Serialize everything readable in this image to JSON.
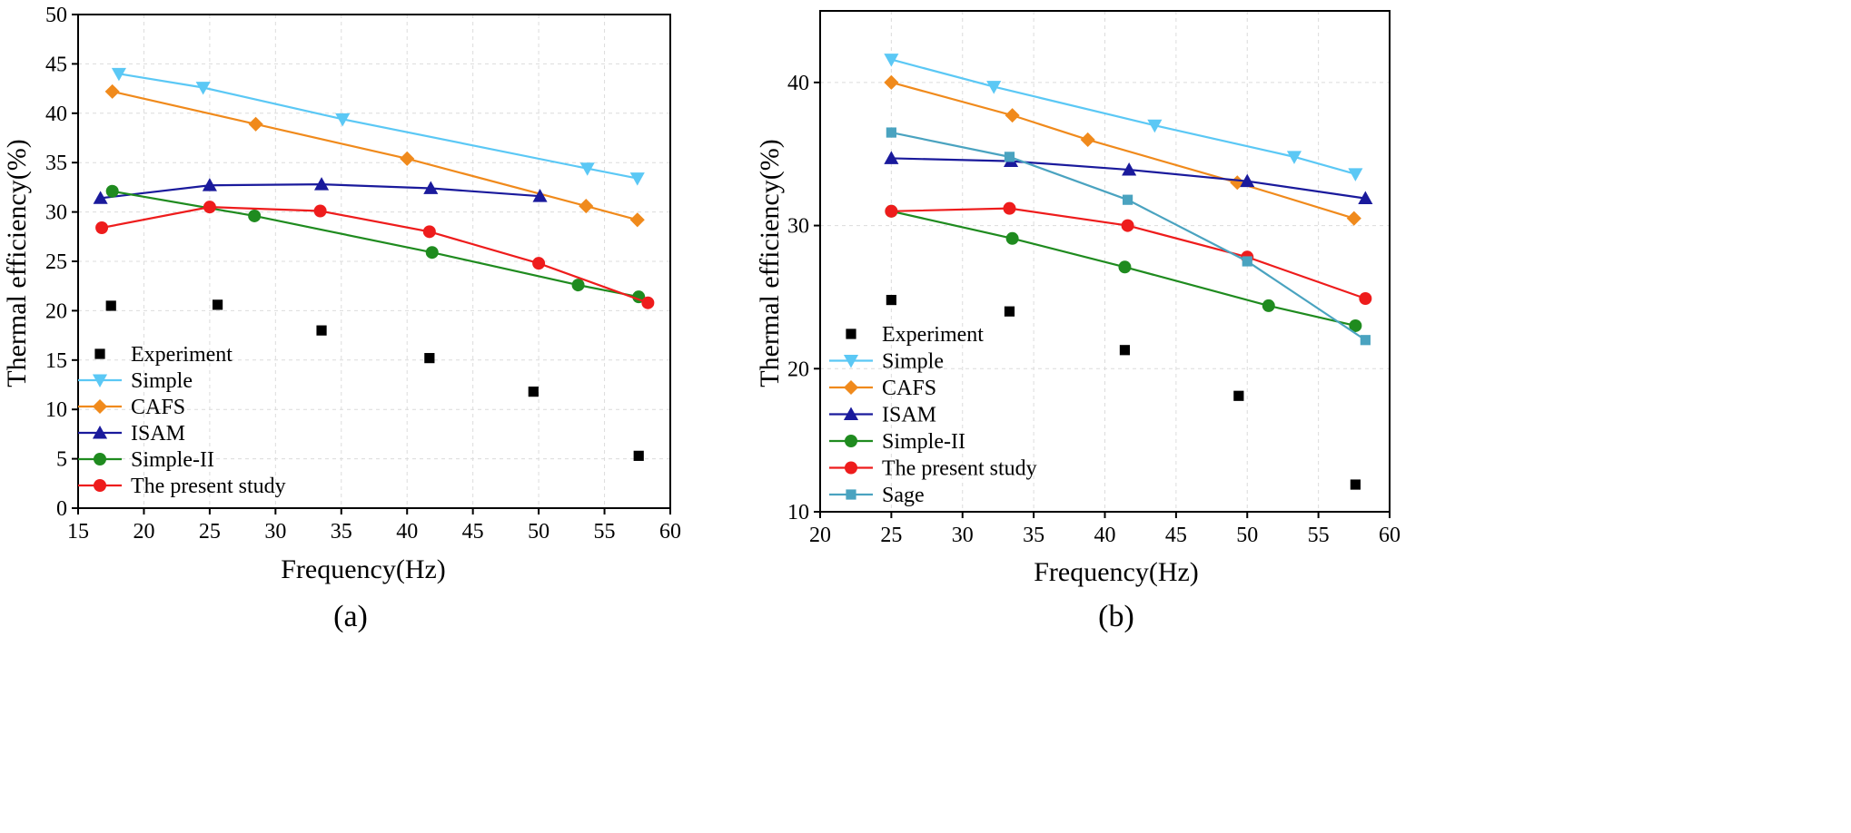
{
  "chart_data": [
    {
      "type": "line",
      "panel_label": "(a)",
      "xlabel": "Frequency(Hz)",
      "ylabel": "Thermal efficiency(%)",
      "xlim": [
        15,
        60
      ],
      "ylim": [
        0,
        50
      ],
      "xticks": [
        15,
        20,
        25,
        30,
        35,
        40,
        45,
        50,
        55,
        60
      ],
      "yticks": [
        0,
        5,
        10,
        15,
        20,
        25,
        30,
        35,
        40,
        45,
        50
      ],
      "grid": true,
      "legend_position": "bottom-left",
      "series": [
        {
          "name": "Experiment",
          "color": "#000000",
          "marker": "square",
          "line": false,
          "x": [
            17.5,
            25.6,
            33.5,
            41.7,
            49.6,
            57.6
          ],
          "y": [
            20.5,
            20.6,
            18.0,
            15.2,
            11.8,
            5.3
          ]
        },
        {
          "name": "Simple",
          "color": "#5bc8f5",
          "marker": "triangle-down",
          "line": true,
          "x": [
            18.1,
            24.5,
            35.1,
            53.7,
            57.5
          ],
          "y": [
            44.0,
            42.6,
            39.4,
            34.4,
            33.4
          ]
        },
        {
          "name": "CAFS",
          "color": "#f08a1c",
          "marker": "diamond",
          "line": true,
          "x": [
            17.6,
            28.5,
            40.0,
            53.6,
            57.5
          ],
          "y": [
            42.2,
            38.9,
            35.4,
            30.6,
            29.2
          ]
        },
        {
          "name": "ISAM",
          "color": "#1a1a9c",
          "marker": "triangle-up",
          "line": true,
          "x": [
            16.7,
            25.0,
            33.5,
            41.8,
            50.1
          ],
          "y": [
            31.4,
            32.7,
            32.8,
            32.4,
            31.6
          ]
        },
        {
          "name": "Simple-II",
          "color": "#1f8b1f",
          "marker": "circle",
          "line": true,
          "x": [
            17.6,
            28.4,
            41.9,
            53.0,
            57.6
          ],
          "y": [
            32.1,
            29.6,
            25.9,
            22.6,
            21.4
          ]
        },
        {
          "name": "The present study",
          "color": "#ee1c1c",
          "marker": "circle",
          "line": true,
          "x": [
            16.8,
            25.0,
            33.4,
            41.7,
            50.0,
            58.3
          ],
          "y": [
            28.4,
            30.5,
            30.1,
            28.0,
            24.8,
            20.8
          ]
        }
      ]
    },
    {
      "type": "line",
      "panel_label": "(b)",
      "xlabel": "Frequency(Hz)",
      "ylabel": "Thermal efficiency(%)",
      "xlim": [
        20,
        60
      ],
      "ylim": [
        10,
        45
      ],
      "xticks": [
        20,
        25,
        30,
        35,
        40,
        45,
        50,
        55,
        60
      ],
      "yticks": [
        10,
        20,
        30,
        40
      ],
      "grid": true,
      "legend_position": "bottom-left",
      "series": [
        {
          "name": "Experiment",
          "color": "#000000",
          "marker": "square",
          "line": false,
          "x": [
            25.0,
            33.3,
            41.4,
            49.4,
            57.6
          ],
          "y": [
            24.8,
            24.0,
            21.3,
            18.1,
            11.9
          ]
        },
        {
          "name": "Simple",
          "color": "#5bc8f5",
          "marker": "triangle-down",
          "line": true,
          "x": [
            25.0,
            32.2,
            43.5,
            53.3,
            57.6
          ],
          "y": [
            41.6,
            39.7,
            37.0,
            34.8,
            33.6
          ]
        },
        {
          "name": "CAFS",
          "color": "#f08a1c",
          "marker": "diamond",
          "line": true,
          "x": [
            25.0,
            33.5,
            38.8,
            49.3,
            57.5
          ],
          "y": [
            40.0,
            37.7,
            36.0,
            33.0,
            30.5
          ]
        },
        {
          "name": "ISAM",
          "color": "#1a1a9c",
          "marker": "triangle-up",
          "line": true,
          "x": [
            25.0,
            33.4,
            41.7,
            50.0,
            58.3
          ],
          "y": [
            34.7,
            34.5,
            33.9,
            33.1,
            31.9
          ]
        },
        {
          "name": "Simple-II",
          "color": "#1f8b1f",
          "marker": "circle",
          "line": true,
          "x": [
            25.0,
            33.5,
            41.4,
            51.5,
            57.6
          ],
          "y": [
            31.0,
            29.1,
            27.1,
            24.4,
            23.0
          ]
        },
        {
          "name": "The present study",
          "color": "#ee1c1c",
          "marker": "circle",
          "line": true,
          "x": [
            25.0,
            33.3,
            41.6,
            50.0,
            58.3
          ],
          "y": [
            31.0,
            31.2,
            30.0,
            27.8,
            24.9
          ]
        },
        {
          "name": "Sage",
          "color": "#4aa3c0",
          "marker": "square",
          "line": true,
          "x": [
            25.0,
            33.3,
            41.6,
            50.0,
            58.3
          ],
          "y": [
            36.5,
            34.8,
            31.8,
            27.5,
            22.0
          ]
        }
      ]
    }
  ]
}
